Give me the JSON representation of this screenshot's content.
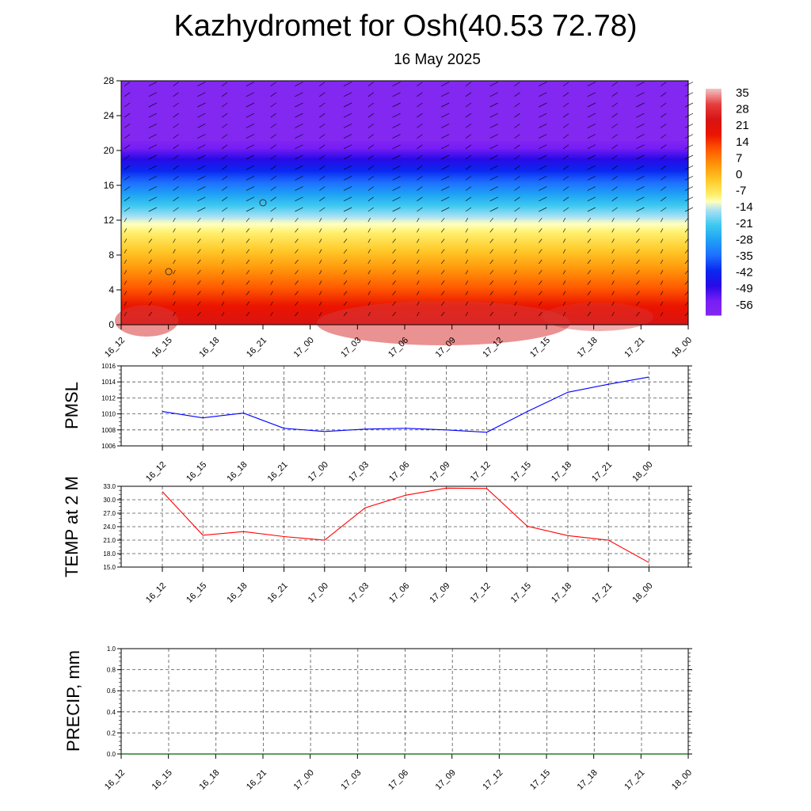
{
  "title": "Kazhydromet for Osh(40.53 72.78)",
  "subtitle": "16 May 2025",
  "colors": {
    "pmsl_line": "#0000ff",
    "temp_line": "#ff0000",
    "precip_line": "#006400",
    "grid": "#555555"
  },
  "chart_data": [
    {
      "type": "heatmap",
      "name_hidden": "cross-section",
      "x_categories": [
        "16_12",
        "16_15",
        "16_18",
        "16_21",
        "17_00",
        "17_03",
        "17_06",
        "17_09",
        "17_12",
        "17_15",
        "17_18",
        "17_21",
        "18_00"
      ],
      "y_ticks": [
        "0",
        "4",
        "8",
        "12",
        "16",
        "20",
        "24",
        "28"
      ],
      "ylim": [
        0,
        28
      ],
      "colorbar_labels": [
        "35",
        "28",
        "21",
        "14",
        "7",
        "0",
        "-7",
        "-14",
        "-21",
        "-28",
        "-35",
        "-42",
        "-49",
        "-56"
      ],
      "colorbar_range": [
        -63,
        42
      ],
      "overlay": "wind barbs"
    },
    {
      "type": "line",
      "ylabel": "PMSL",
      "x_categories": [
        "16_12",
        "16_15",
        "16_18",
        "16_21",
        "17_00",
        "17_03",
        "17_06",
        "17_09",
        "17_12",
        "17_15",
        "17_18",
        "17_21",
        "18_00"
      ],
      "y_ticks": [
        "1006",
        "1008",
        "1010",
        "1012",
        "1014",
        "1016"
      ],
      "ylim": [
        1006,
        1016
      ],
      "values": [
        1010.3,
        1009.5,
        1010.1,
        1008.2,
        1007.8,
        1008.1,
        1008.2,
        1008.0,
        1007.7,
        1010.3,
        1012.7,
        1013.7,
        1014.6
      ]
    },
    {
      "type": "line",
      "ylabel": "TEMP at 2 M",
      "x_categories": [
        "16_12",
        "16_15",
        "16_18",
        "16_21",
        "17_00",
        "17_03",
        "17_06",
        "17_09",
        "17_12",
        "17_15",
        "17_18",
        "17_21",
        "18_00"
      ],
      "y_ticks": [
        "15.0",
        "18.0",
        "21.0",
        "24.0",
        "27.0",
        "30.0",
        "33.0"
      ],
      "ylim": [
        15,
        33
      ],
      "values": [
        31.8,
        22.1,
        22.9,
        21.8,
        21.0,
        28.2,
        31.0,
        32.6,
        32.5,
        24.1,
        22.0,
        21.0,
        16.0
      ]
    },
    {
      "type": "line",
      "ylabel": "PRECIP, mm",
      "x_categories": [
        "16_12",
        "16_15",
        "16_18",
        "16_21",
        "17_00",
        "17_03",
        "17_06",
        "17_09",
        "17_12",
        "17_15",
        "17_18",
        "17_21",
        "18_00"
      ],
      "y_ticks": [
        "0.0",
        "0.2",
        "0.4",
        "0.6",
        "0.8",
        "1.0"
      ],
      "ylim": [
        0,
        1
      ],
      "values": [
        0,
        0,
        0,
        0,
        0,
        0,
        0,
        0,
        0,
        0,
        0,
        0,
        0
      ]
    }
  ]
}
